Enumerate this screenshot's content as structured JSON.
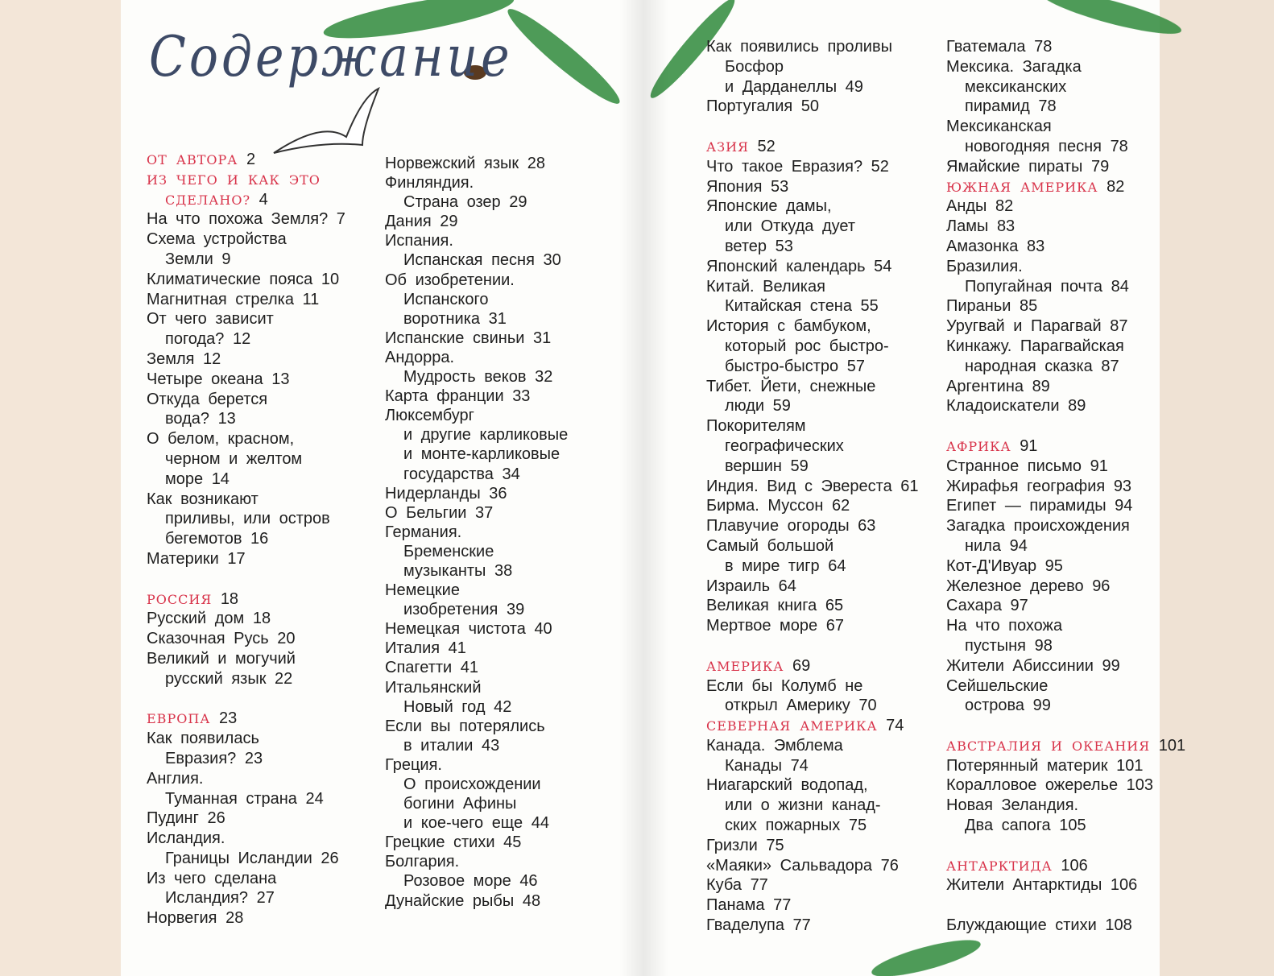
{
  "title": "Содержание",
  "columns": [
    {
      "entries": [
        {
          "lines": [
            "ОТ АВТОРА"
          ],
          "page": 2,
          "heading": true
        },
        {
          "lines": [
            "ИЗ ЧЕГО И КАК ЭТО",
            "СДЕЛАНО?"
          ],
          "page": 4,
          "heading": true
        },
        {
          "lines": [
            "На что похожа Земля?"
          ],
          "page": 7
        },
        {
          "lines": [
            "Схема устройства",
            "Земли"
          ],
          "page": 9
        },
        {
          "lines": [
            "Климатические пояса"
          ],
          "page": 10
        },
        {
          "lines": [
            "Магнитная стрелка"
          ],
          "page": 11
        },
        {
          "lines": [
            "От чего зависит",
            "погода?"
          ],
          "page": 12
        },
        {
          "lines": [
            "Земля"
          ],
          "page": 12
        },
        {
          "lines": [
            "Четыре океана"
          ],
          "page": 13
        },
        {
          "lines": [
            "Откуда берется",
            "вода?"
          ],
          "page": 13
        },
        {
          "lines": [
            "О белом, красном,",
            "черном и желтом",
            "море"
          ],
          "page": 14
        },
        {
          "lines": [
            "Как возникают",
            "приливы, или остров",
            "бегемотов"
          ],
          "page": 16
        },
        {
          "lines": [
            "Материки"
          ],
          "page": 17
        },
        {
          "lines": [
            "РОССИЯ"
          ],
          "page": 18,
          "heading": true
        },
        {
          "lines": [
            "Русский дом"
          ],
          "page": 18
        },
        {
          "lines": [
            "Сказочная Русь"
          ],
          "page": 20
        },
        {
          "lines": [
            "Великий и могучий",
            "русский язык"
          ],
          "page": 22
        },
        {
          "lines": [
            "ЕВРОПА"
          ],
          "page": 23,
          "heading": true
        },
        {
          "lines": [
            "Как появилась",
            "Евразия?"
          ],
          "page": 23
        },
        {
          "lines": [
            "Англия.",
            "Туманная страна"
          ],
          "page": 24
        },
        {
          "lines": [
            "Пудинг"
          ],
          "page": 26
        },
        {
          "lines": [
            "Исландия.",
            "Границы Исландии"
          ],
          "page": 26
        },
        {
          "lines": [
            "Из чего сделана",
            "Исландия?"
          ],
          "page": 27
        },
        {
          "lines": [
            "Норвегия"
          ],
          "page": 28
        }
      ]
    },
    {
      "entries": [
        {
          "lines": [
            "Норвежский язык"
          ],
          "page": 28
        },
        {
          "lines": [
            "Финляндия.",
            "Страна озер"
          ],
          "page": 29
        },
        {
          "lines": [
            "Дания"
          ],
          "page": 29
        },
        {
          "lines": [
            "Испания.",
            "Испанская песня"
          ],
          "page": 30
        },
        {
          "lines": [
            "Об изобретении.",
            "Испанского",
            "воротника"
          ],
          "page": 31
        },
        {
          "lines": [
            "Испанские свиньи"
          ],
          "page": 31
        },
        {
          "lines": [
            "Андорра.",
            "Мудрость веков"
          ],
          "page": 32
        },
        {
          "lines": [
            "Карта франции"
          ],
          "page": 33
        },
        {
          "lines": [
            "Люксембург",
            "и другие карликовые",
            "и монте-карликовые",
            "государства"
          ],
          "page": 34
        },
        {
          "lines": [
            "Нидерланды"
          ],
          "page": 36
        },
        {
          "lines": [
            "О Бельгии"
          ],
          "page": 37
        },
        {
          "lines": [
            "Германия.",
            "Бременские",
            "музыканты"
          ],
          "page": 38
        },
        {
          "lines": [
            "Немецкие",
            "изобретения"
          ],
          "page": 39
        },
        {
          "lines": [
            "Немецкая чистота"
          ],
          "page": 40
        },
        {
          "lines": [
            "Италия"
          ],
          "page": 41
        },
        {
          "lines": [
            "Спагетти"
          ],
          "page": 41
        },
        {
          "lines": [
            "Итальянский",
            "Новый год"
          ],
          "page": 42
        },
        {
          "lines": [
            "Если вы потерялись",
            "в италии"
          ],
          "page": 43
        },
        {
          "lines": [
            "Греция.",
            "О происхождении",
            "богини Афины",
            "и кое-чего еще"
          ],
          "page": 44
        },
        {
          "lines": [
            "Грецкие стихи"
          ],
          "page": 45
        },
        {
          "lines": [
            "Болгария.",
            "Розовое море"
          ],
          "page": 46
        },
        {
          "lines": [
            "Дунайские рыбы"
          ],
          "page": 48
        }
      ]
    },
    {
      "entries": [
        {
          "lines": [
            "Как появились проливы",
            "Босфор",
            "и Дарданеллы"
          ],
          "page": 49
        },
        {
          "lines": [
            "Португалия"
          ],
          "page": 50
        },
        {
          "lines": [
            "АЗИЯ"
          ],
          "page": 52,
          "heading": true
        },
        {
          "lines": [
            "Что такое Евразия?"
          ],
          "page": 52
        },
        {
          "lines": [
            "Япония"
          ],
          "page": 53
        },
        {
          "lines": [
            "Японские дамы,",
            "или Откуда дует",
            "ветер"
          ],
          "page": 53
        },
        {
          "lines": [
            "Японский календарь"
          ],
          "page": 54
        },
        {
          "lines": [
            "Китай. Великая",
            "Китайская стена"
          ],
          "page": 55
        },
        {
          "lines": [
            "История с бамбуком,",
            "который рос быстро-",
            "быстро-быстро"
          ],
          "page": 57
        },
        {
          "lines": [
            "Тибет. Йети, снежные",
            "люди"
          ],
          "page": 59
        },
        {
          "lines": [
            "Покорителям",
            "географических",
            "вершин"
          ],
          "page": 59
        },
        {
          "lines": [
            "Индия. Вид с Эвереста"
          ],
          "page": 61
        },
        {
          "lines": [
            "Бирма. Муссон"
          ],
          "page": 62
        },
        {
          "lines": [
            "Плавучие огороды"
          ],
          "page": 63
        },
        {
          "lines": [
            "Самый большой",
            "в мире тигр"
          ],
          "page": 64
        },
        {
          "lines": [
            "Израиль"
          ],
          "page": 64
        },
        {
          "lines": [
            "Великая книга"
          ],
          "page": 65
        },
        {
          "lines": [
            "Мертвое море"
          ],
          "page": 67
        },
        {
          "lines": [
            "АМЕРИКА"
          ],
          "page": 69,
          "heading": true
        },
        {
          "lines": [
            "Если бы Колумб не",
            "открыл Америку"
          ],
          "page": 70
        },
        {
          "lines": [
            "СЕВЕРНАЯ АМЕРИКА"
          ],
          "page": 74,
          "heading": true
        },
        {
          "lines": [
            "Канада. Эмблема",
            "Канады"
          ],
          "page": 74
        },
        {
          "lines": [
            "Ниагарский водопад,",
            "или о жизни канад-",
            "ских пожарных"
          ],
          "page": 75
        },
        {
          "lines": [
            "Гризли"
          ],
          "page": 75
        },
        {
          "lines": [
            "«Маяки» Сальвадора"
          ],
          "page": 76
        },
        {
          "lines": [
            "Куба"
          ],
          "page": 77
        },
        {
          "lines": [
            "Панама"
          ],
          "page": 77
        },
        {
          "lines": [
            "Гваделупа"
          ],
          "page": 77
        }
      ]
    },
    {
      "entries": [
        {
          "lines": [
            "Гватемала"
          ],
          "page": 78
        },
        {
          "lines": [
            "Мексика. Загадка",
            "мексиканских",
            "пирамид"
          ],
          "page": 78
        },
        {
          "lines": [
            "Мексиканская",
            "новогодняя песня"
          ],
          "page": 78
        },
        {
          "lines": [
            "Ямайские пираты"
          ],
          "page": 79
        },
        {
          "lines": [
            "ЮЖНАЯ АМЕРИКА"
          ],
          "page": 82,
          "heading": true
        },
        {
          "lines": [
            "Анды"
          ],
          "page": 82
        },
        {
          "lines": [
            "Ламы"
          ],
          "page": 83
        },
        {
          "lines": [
            "Амазонка"
          ],
          "page": 83
        },
        {
          "lines": [
            "Бразилия.",
            "Попугайная почта"
          ],
          "page": 84
        },
        {
          "lines": [
            "Пираньи"
          ],
          "page": 85
        },
        {
          "lines": [
            "Уругвай и Парагвай"
          ],
          "page": 87
        },
        {
          "lines": [
            "Кинкажу. Парагвайская",
            "народная сказка"
          ],
          "page": 87
        },
        {
          "lines": [
            "Аргентина"
          ],
          "page": 89
        },
        {
          "lines": [
            "Кладоискатели"
          ],
          "page": 89
        },
        {
          "lines": [
            "АФРИКА"
          ],
          "page": 91,
          "heading": true
        },
        {
          "lines": [
            "Странное письмо"
          ],
          "page": 91
        },
        {
          "lines": [
            "Жирафья география"
          ],
          "page": 93
        },
        {
          "lines": [
            "Египет — пирамиды"
          ],
          "page": 94
        },
        {
          "lines": [
            "Загадка происхождения",
            "нила"
          ],
          "page": 94
        },
        {
          "lines": [
            "Кот-Д'Ивуар"
          ],
          "page": 95
        },
        {
          "lines": [
            "Железное дерево"
          ],
          "page": 96
        },
        {
          "lines": [
            "Сахара"
          ],
          "page": 97
        },
        {
          "lines": [
            "На что похожа",
            "пустыня"
          ],
          "page": 98
        },
        {
          "lines": [
            "Жители Абиссинии"
          ],
          "page": 99
        },
        {
          "lines": [
            "Сейшельские",
            "острова"
          ],
          "page": 99
        },
        {
          "lines": [
            "АВСТРАЛИЯ И ОКЕАНИЯ"
          ],
          "page": 101,
          "heading": true
        },
        {
          "lines": [
            "Потерянный материк"
          ],
          "page": 101
        },
        {
          "lines": [
            "Коралловое ожерелье"
          ],
          "page": 103
        },
        {
          "lines": [
            "Новая Зеландия.",
            "Два сапога"
          ],
          "page": 105
        },
        {
          "lines": [
            "АНТАРКТИДА"
          ],
          "page": 106,
          "heading": true
        },
        {
          "lines": [
            "Жители Антарктиды"
          ],
          "page": 106
        },
        {
          "lines": [
            "Блуждающие стихи"
          ],
          "page": 108
        }
      ]
    }
  ]
}
